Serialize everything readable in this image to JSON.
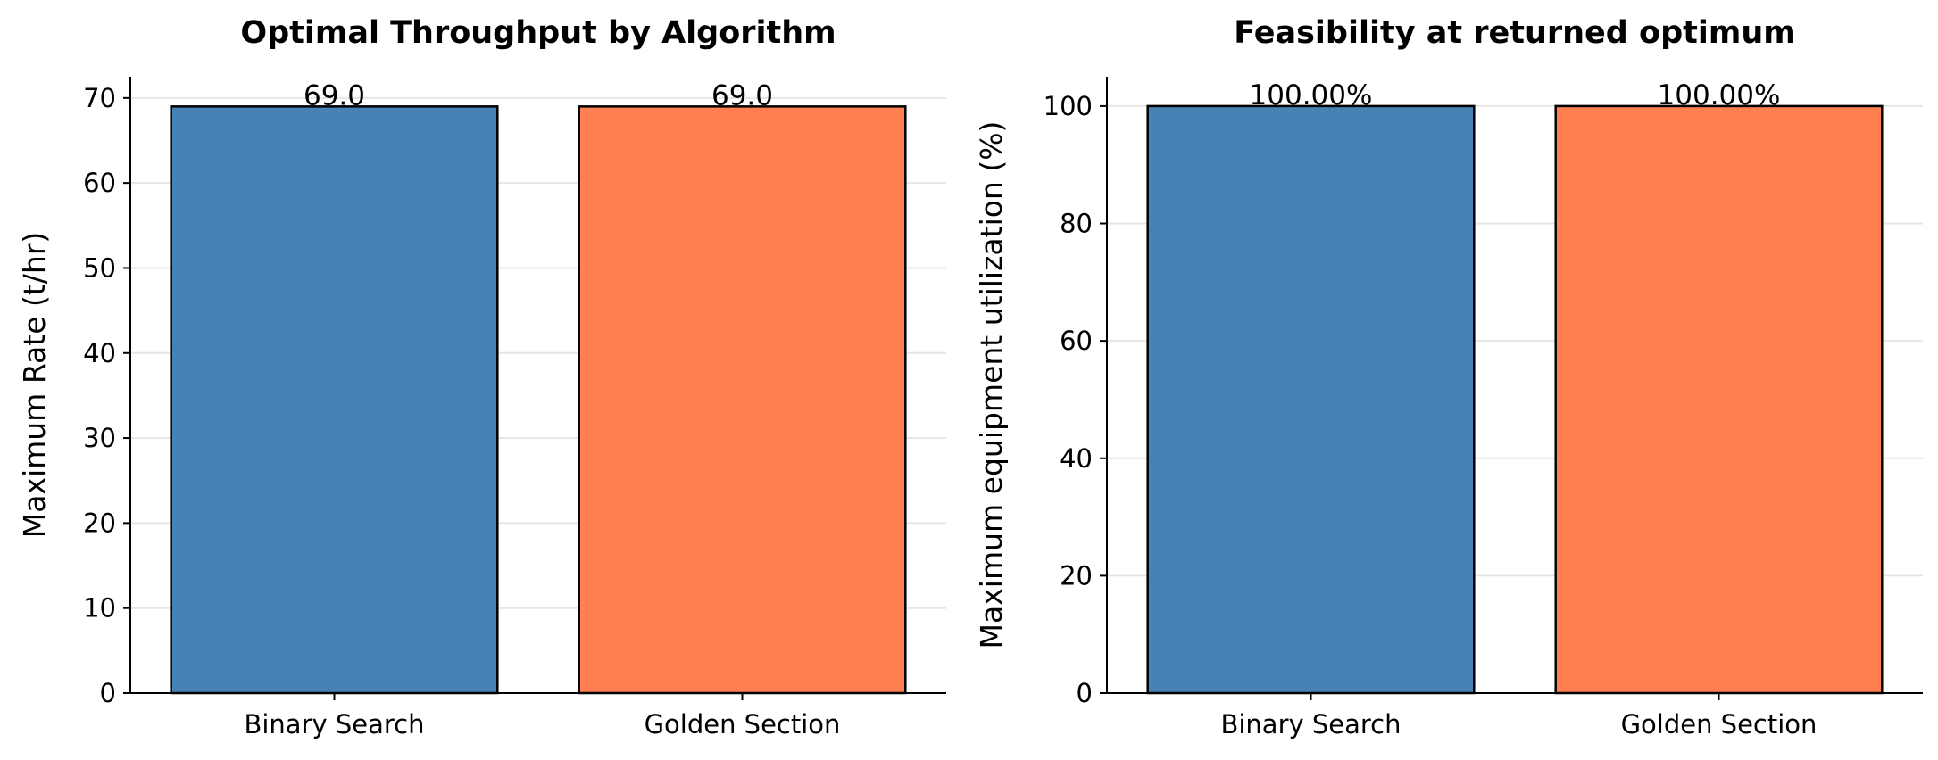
{
  "chart_data": [
    {
      "type": "bar",
      "title": "Optimal Throughput by Algorithm",
      "xlabel": "",
      "ylabel": "Maximum Rate (t/hr)",
      "categories": [
        "Binary Search",
        "Golden Section"
      ],
      "values": [
        69.0,
        69.0
      ],
      "value_labels": [
        "69.0",
        "69.0"
      ],
      "colors": [
        "#4682b4",
        "#ff7f50"
      ],
      "ylim": [
        0,
        72.5
      ],
      "yticks": [
        0,
        10,
        20,
        30,
        40,
        50,
        60,
        70
      ],
      "ytick_labels": [
        "0",
        "10",
        "20",
        "30",
        "40",
        "50",
        "60",
        "70"
      ],
      "grid": true,
      "legend": false
    },
    {
      "type": "bar",
      "title": "Feasibility at returned optimum",
      "xlabel": "",
      "ylabel": "Maximum equipment utilization (%)",
      "categories": [
        "Binary Search",
        "Golden Section"
      ],
      "values": [
        100.0,
        100.0
      ],
      "value_labels": [
        "100.00%",
        "100.00%"
      ],
      "colors": [
        "#4682b4",
        "#ff7f50"
      ],
      "ylim": [
        0,
        105
      ],
      "yticks": [
        0,
        20,
        40,
        60,
        80,
        100
      ],
      "ytick_labels": [
        "0",
        "20",
        "40",
        "60",
        "80",
        "100"
      ],
      "grid": true,
      "legend": false
    }
  ]
}
